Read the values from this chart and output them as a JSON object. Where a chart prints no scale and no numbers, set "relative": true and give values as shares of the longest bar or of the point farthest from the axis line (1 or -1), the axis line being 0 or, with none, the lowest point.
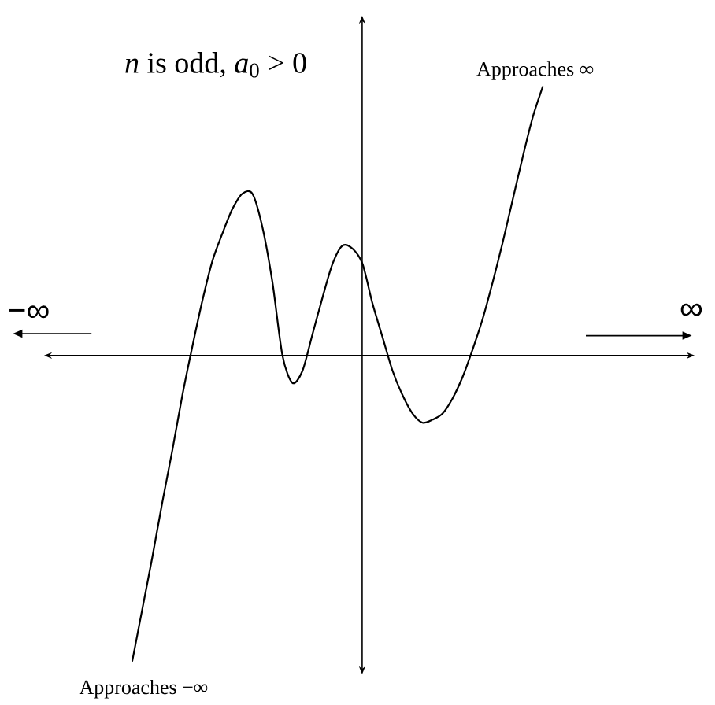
{
  "chart_data": {
    "type": "line",
    "title": "*n* is odd, *a*$_{0}$ > 0",
    "categories": [
      null,
      null,
      null,
      null,
      null,
      null,
      null,
      null,
      null,
      null,
      null,
      null,
      null,
      null,
      null,
      null,
      null,
      null,
      null,
      null,
      null,
      null,
      null,
      null,
      null,
      null,
      null,
      null,
      null,
      null,
      null,
      null,
      null,
      null,
      null,
      null,
      null,
      null,
      null,
      null,
      null,
      null
    ],
    "series": [
      {
        "color": "#000000",
        "values": [
          -1,
          -0.83,
          -0.66,
          -0.48,
          -0.31,
          -0.13,
          0.03,
          0.18,
          0.31,
          0.4,
          0.48,
          0.53,
          0.53,
          0.42,
          0.24,
          0,
          -0.09,
          -0.05,
          0.07,
          0.19,
          0.3,
          0.36,
          0.35,
          0.3,
          0.17,
          0.06,
          -0.05,
          -0.13,
          -0.19,
          -0.22,
          -0.21,
          -0.19,
          -0.14,
          -0.07,
          0.02,
          0.12,
          0.24,
          0.37,
          0.51,
          0.65,
          0.78,
          0.88
        ]
      }
    ],
    "relative": true,
    "annotations": [
      "Approaches ∞",
      "Approaches −∞",
      "−∞",
      "∞"
    ]
  }
}
